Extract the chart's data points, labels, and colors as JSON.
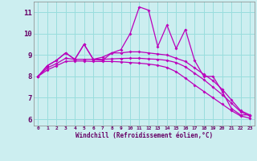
{
  "background_color": "#cceef0",
  "grid_color": "#99dddd",
  "line_color": "#bb00bb",
  "xlim": [
    -0.5,
    23.5
  ],
  "ylim": [
    5.7,
    11.5
  ],
  "yticks": [
    6,
    7,
    8,
    9,
    10,
    11
  ],
  "xticks": [
    0,
    1,
    2,
    3,
    4,
    5,
    6,
    7,
    8,
    9,
    10,
    11,
    12,
    13,
    14,
    15,
    16,
    17,
    18,
    19,
    20,
    21,
    22,
    23
  ],
  "xlabel": "Windchill (Refroidissement éolien,°C)",
  "series": [
    [
      8.0,
      8.5,
      8.75,
      9.1,
      8.8,
      9.5,
      8.8,
      8.75,
      9.1,
      9.25,
      10.0,
      11.25,
      11.1,
      9.4,
      10.4,
      9.3,
      10.2,
      8.75,
      8.0,
      8.0,
      7.3,
      6.5,
      6.2,
      6.2
    ],
    [
      8.0,
      8.5,
      8.75,
      9.1,
      8.8,
      9.5,
      8.8,
      8.9,
      9.1,
      9.1,
      9.15,
      9.15,
      9.1,
      9.05,
      9.0,
      8.85,
      8.7,
      8.4,
      8.1,
      7.8,
      7.4,
      6.9,
      6.4,
      6.2
    ],
    [
      8.0,
      8.4,
      8.6,
      8.85,
      8.8,
      8.8,
      8.8,
      8.8,
      8.82,
      8.84,
      8.85,
      8.85,
      8.82,
      8.8,
      8.75,
      8.65,
      8.45,
      8.15,
      7.85,
      7.5,
      7.15,
      6.75,
      6.35,
      6.15
    ],
    [
      8.0,
      8.3,
      8.5,
      8.7,
      8.72,
      8.72,
      8.7,
      8.7,
      8.7,
      8.68,
      8.65,
      8.62,
      8.58,
      8.52,
      8.42,
      8.22,
      7.92,
      7.6,
      7.3,
      7.0,
      6.7,
      6.4,
      6.15,
      6.05
    ]
  ]
}
